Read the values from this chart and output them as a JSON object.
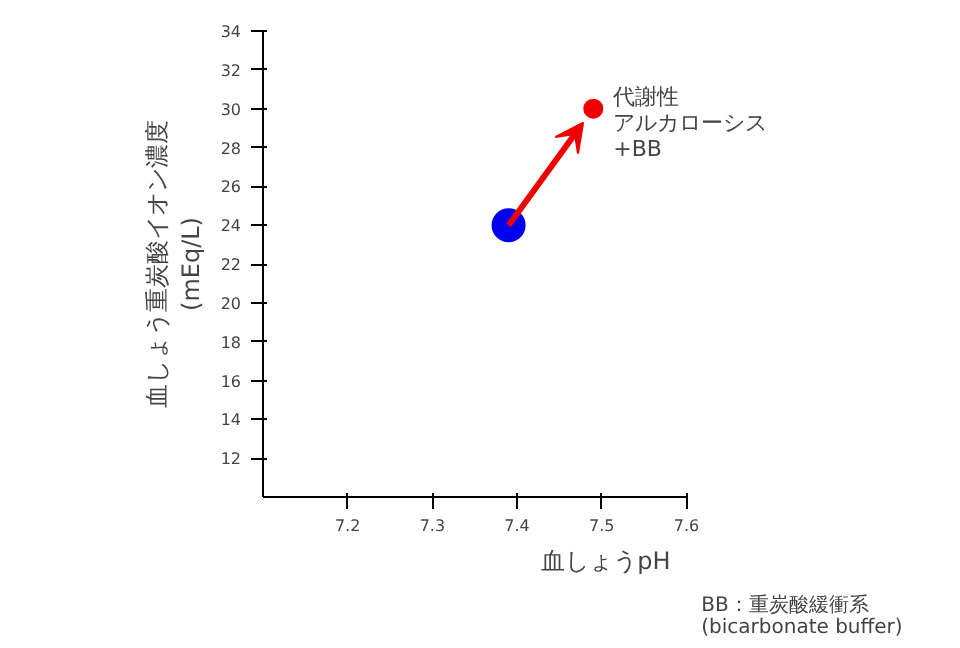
{
  "chart_data": {
    "type": "scatter",
    "xlabel": "血しょうpH",
    "ylabel": "血しょう重炭酸イオン濃度\n(mEq/L)",
    "xlim": [
      7.1,
      7.6
    ],
    "xticks": [
      7.2,
      7.3,
      7.4,
      7.5,
      7.6
    ],
    "ylim": [
      10,
      34
    ],
    "yticks": [
      12,
      14,
      16,
      18,
      20,
      22,
      24,
      26,
      28,
      30,
      32,
      34
    ],
    "grid": false,
    "marker": "circle",
    "series": [
      {
        "color": "#0000ee",
        "x": [
          7.39
        ],
        "values": [
          24
        ]
      },
      {
        "color": "#ee0000",
        "x": [
          7.49
        ],
        "values": [
          30
        ]
      }
    ],
    "annotations": [
      {
        "text": "代謝性",
        "x": 7.49,
        "y": 30
      },
      "アルカローシス",
      "+BB",
      "BB：重炭酸緩衝系\n (bicarbonate buffer)"
    ]
  }
}
